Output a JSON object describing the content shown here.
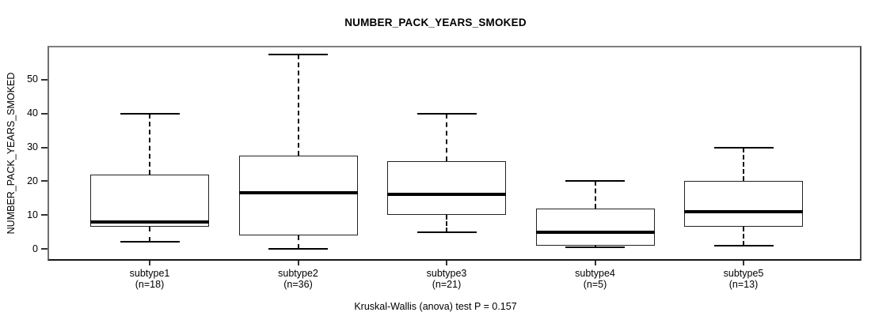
{
  "chart_data": {
    "type": "boxplot",
    "title": "NUMBER_PACK_YEARS_SMOKED",
    "ylabel": "NUMBER_PACK_YEARS_SMOKED",
    "xlabel": "",
    "footnote": "Kruskal-Wallis (anova) test P = 0.157",
    "p_value": 0.157,
    "yticks": [
      0,
      10,
      20,
      30,
      40,
      50
    ],
    "ylim": [
      -3.5,
      60
    ],
    "grid": false,
    "categories": [
      "subtype1",
      "subtype2",
      "subtype3",
      "subtype4",
      "subtype5"
    ],
    "groups": [
      {
        "label": "subtype1",
        "n_label": "(n=18)",
        "n": 18,
        "whisker_low": 2,
        "q1": 6.5,
        "median": 8,
        "q3": 22,
        "whisker_high": 40
      },
      {
        "label": "subtype2",
        "n_label": "(n=36)",
        "n": 36,
        "whisker_low": 0,
        "q1": 4,
        "median": 16.5,
        "q3": 27.5,
        "whisker_high": 57.5
      },
      {
        "label": "subtype3",
        "n_label": "(n=21)",
        "n": 21,
        "whisker_low": 5,
        "q1": 10,
        "median": 16,
        "q3": 26,
        "whisker_high": 40
      },
      {
        "label": "subtype4",
        "n_label": "(n=5)",
        "n": 5,
        "whisker_low": 0.5,
        "q1": 1,
        "median": 5,
        "q3": 12,
        "whisker_high": 20
      },
      {
        "label": "subtype5",
        "n_label": "(n=13)",
        "n": 13,
        "whisker_low": 1,
        "q1": 6.5,
        "median": 11,
        "q3": 20,
        "whisker_high": 30
      }
    ],
    "colors": {
      "background": "#ffffff",
      "box_border": "#222222",
      "median": "#000000",
      "whisker": "#111111",
      "frame": "#666666",
      "text": "#000000"
    }
  }
}
